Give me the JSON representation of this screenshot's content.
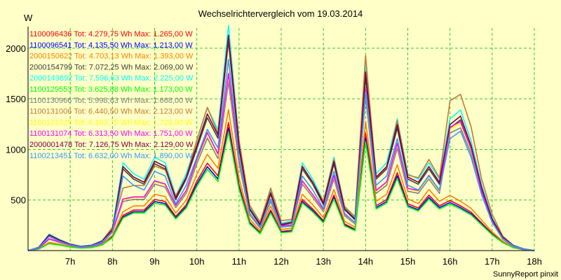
{
  "chart_data": {
    "type": "line",
    "title": "Wechselrichtervergleich vom 19.03.2014",
    "ylabel": "W",
    "footer": "SunnyReport pinxit",
    "xlim": [
      6.0,
      18.0
    ],
    "ylim": [
      0,
      2200
    ],
    "x_ticks": [
      {
        "value": 7,
        "label": "7h"
      },
      {
        "value": 8,
        "label": "8h"
      },
      {
        "value": 9,
        "label": "9h"
      },
      {
        "value": 10,
        "label": "10h"
      },
      {
        "value": 11,
        "label": "11h"
      },
      {
        "value": 12,
        "label": "12h"
      },
      {
        "value": 13,
        "label": "13h"
      },
      {
        "value": 14,
        "label": "14h"
      },
      {
        "value": 15,
        "label": "15h"
      },
      {
        "value": 16,
        "label": "16h"
      },
      {
        "value": 17,
        "label": "17h"
      },
      {
        "value": 18,
        "label": "18h"
      }
    ],
    "y_ticks": [
      {
        "value": 500,
        "label": "500"
      },
      {
        "value": 1000,
        "label": "1000"
      },
      {
        "value": 1500,
        "label": "1500"
      },
      {
        "value": 2000,
        "label": "2000"
      }
    ],
    "grid": true,
    "grid_color": "#33cc33",
    "x": [
      6.0,
      6.25,
      6.5,
      6.75,
      7.0,
      7.25,
      7.5,
      7.75,
      8.0,
      8.25,
      8.5,
      8.75,
      9.0,
      9.25,
      9.5,
      9.75,
      10.0,
      10.25,
      10.5,
      10.75,
      11.0,
      11.25,
      11.5,
      11.75,
      12.0,
      12.25,
      12.5,
      12.75,
      13.0,
      13.25,
      13.5,
      13.75,
      14.0,
      14.25,
      14.5,
      14.75,
      15.0,
      15.25,
      15.5,
      15.75,
      16.0,
      16.25,
      16.5,
      16.75,
      17.0,
      17.25,
      17.5,
      17.75,
      18.0
    ],
    "legend_position": "top-left",
    "series": [
      {
        "name": "1100096436 Tot: 4.279,75 Wh Max: 1.265,00 W",
        "color": "#ff0000",
        "type": "low",
        "peak": 1265,
        "tot": 4279.75
      },
      {
        "name": "1100096541 Tot: 4.135,50 Wh Max: 1.213,00 W",
        "color": "#0000ff",
        "type": "low",
        "peak": 1213,
        "tot": 4135.5
      },
      {
        "name": "2000150622 Tot: 4.703,13 Wh Max: 1.393,00 W",
        "color": "#ff8000",
        "type": "low",
        "peak": 1393,
        "tot": 4703.13
      },
      {
        "name": "2000154799 Tot: 7.072,25 Wh Max: 2.069,00 W",
        "color": "#404040",
        "type": "high",
        "peak": 2069,
        "tot": 7072.25
      },
      {
        "name": "2000149892 Tot: 7.596,63 Wh Max: 2.225,00 W",
        "color": "#00ffff",
        "type": "high",
        "peak": 2225,
        "tot": 7596.63
      },
      {
        "name": "1100129553 Tot: 3.625,88 Wh Max: 1.173,00 W",
        "color": "#00ff00",
        "type": "low",
        "peak": 1173,
        "tot": 3625.88
      },
      {
        "name": "1100130966 Tot: 5.998,63 Wh Max: 1.668,00 W",
        "color": "#808080",
        "type": "mid",
        "peak": 1668,
        "tot": 5998.63
      },
      {
        "name": "1100131006 Tot: 6.440,50 Wh Max: 2.123,00 W",
        "color": "#c87832",
        "type": "mid",
        "peak": 2123,
        "tot": 6440.5
      },
      {
        "name": "1100131025 Tot: 6.193,75 Wh Max: 1.729,00 W",
        "color": "#ffff00",
        "type": "mid",
        "peak": 1729,
        "tot": 6193.75
      },
      {
        "name": "1100131074 Tot: 6.313,50 Wh Max: 1.751,00 W",
        "color": "#ff00ff",
        "type": "mid",
        "peak": 1751,
        "tot": 6313.5
      },
      {
        "name": "2000001478 Tot: 7.126,75 Wh Max: 2.129,00 W",
        "color": "#800040",
        "type": "high",
        "peak": 2129,
        "tot": 7126.75
      },
      {
        "name": "1100213451 Tot: 6.632,00 Wh Max: 1.890,00 W",
        "color": "#3399ff",
        "type": "high",
        "peak": 1890,
        "tot": 6632.0
      }
    ],
    "profiles": {
      "high": [
        0,
        30,
        150,
        100,
        60,
        40,
        50,
        90,
        200,
        800,
        700,
        650,
        850,
        800,
        500,
        700,
        1000,
        1300,
        1100,
        2050,
        1000,
        400,
        250,
        550,
        250,
        270,
        800,
        650,
        450,
        850,
        400,
        300,
        1700,
        700,
        800,
        1200,
        700,
        650,
        800,
        650,
        1200,
        1280,
        1000,
        600,
        300,
        130,
        50,
        15,
        0
      ],
      "mid": [
        0,
        20,
        110,
        80,
        50,
        30,
        40,
        70,
        180,
        480,
        500,
        500,
        650,
        620,
        420,
        560,
        850,
        1100,
        900,
        1650,
        850,
        350,
        220,
        480,
        230,
        240,
        650,
        520,
        380,
        700,
        340,
        260,
        1500,
        560,
        640,
        1000,
        580,
        560,
        700,
        560,
        1150,
        1200,
        950,
        550,
        280,
        110,
        40,
        10,
        0
      ],
      "low": [
        0,
        15,
        70,
        55,
        35,
        25,
        30,
        55,
        130,
        330,
        380,
        380,
        480,
        460,
        320,
        430,
        650,
        820,
        700,
        1200,
        620,
        270,
        170,
        380,
        180,
        190,
        480,
        390,
        280,
        520,
        250,
        200,
        1100,
        420,
        480,
        730,
        440,
        400,
        520,
        420,
        470,
        420,
        360,
        260,
        160,
        80,
        30,
        8,
        0
      ]
    }
  }
}
